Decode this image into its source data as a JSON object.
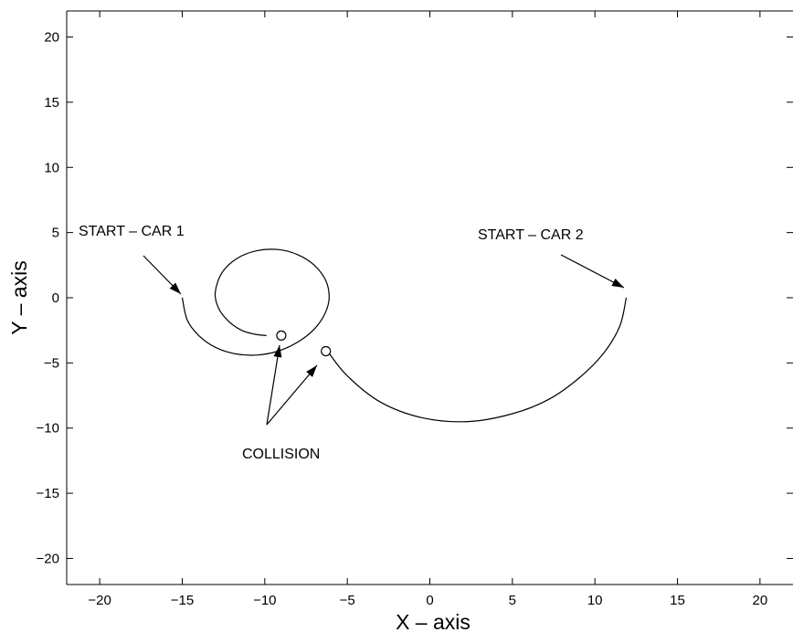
{
  "chart_data": {
    "type": "line",
    "xlabel": "X – axis",
    "ylabel": "Y – axis",
    "xlim": [
      -22,
      22
    ],
    "ylim": [
      -22,
      22
    ],
    "xticks": [
      -20,
      -15,
      -10,
      -5,
      0,
      5,
      10,
      15,
      20
    ],
    "yticks": [
      20,
      15,
      10,
      5,
      0,
      -5,
      -10,
      -15,
      -20
    ],
    "grid": false,
    "series": [
      {
        "x": [
          -15.0,
          -14.7,
          -14.0,
          -13.0,
          -11.8,
          -10.5,
          -9.2,
          -8.0,
          -7.0,
          -6.35,
          -6.1,
          -6.3,
          -7.0,
          -8.0,
          -9.2,
          -10.5,
          -11.7,
          -12.6,
          -13.0,
          -12.8,
          -12.2,
          -11.4,
          -10.6,
          -9.9
        ],
        "y": [
          0.0,
          -1.7,
          -2.9,
          -3.8,
          -4.3,
          -4.4,
          -4.1,
          -3.4,
          -2.4,
          -1.2,
          0.0,
          1.3,
          2.5,
          3.3,
          3.7,
          3.6,
          3.0,
          1.9,
          0.4,
          -0.8,
          -1.8,
          -2.5,
          -2.8,
          -2.9
        ]
      },
      {
        "x": [
          11.9,
          11.5,
          10.5,
          9.0,
          7.2,
          5.0,
          2.3,
          -0.5,
          -3.0,
          -5.0,
          -6.2
        ],
        "y": [
          0.0,
          -2.2,
          -4.3,
          -6.2,
          -7.8,
          -8.9,
          -9.5,
          -9.2,
          -8.0,
          -6.0,
          -4.1
        ]
      }
    ],
    "markers": [
      {
        "x": -9.0,
        "y": -2.9
      },
      {
        "x": -6.3,
        "y": -4.1
      }
    ],
    "annotations": [
      {
        "text": "START – CAR 1"
      },
      {
        "text": "START – CAR 2"
      },
      {
        "text": "COLLISION"
      }
    ]
  }
}
